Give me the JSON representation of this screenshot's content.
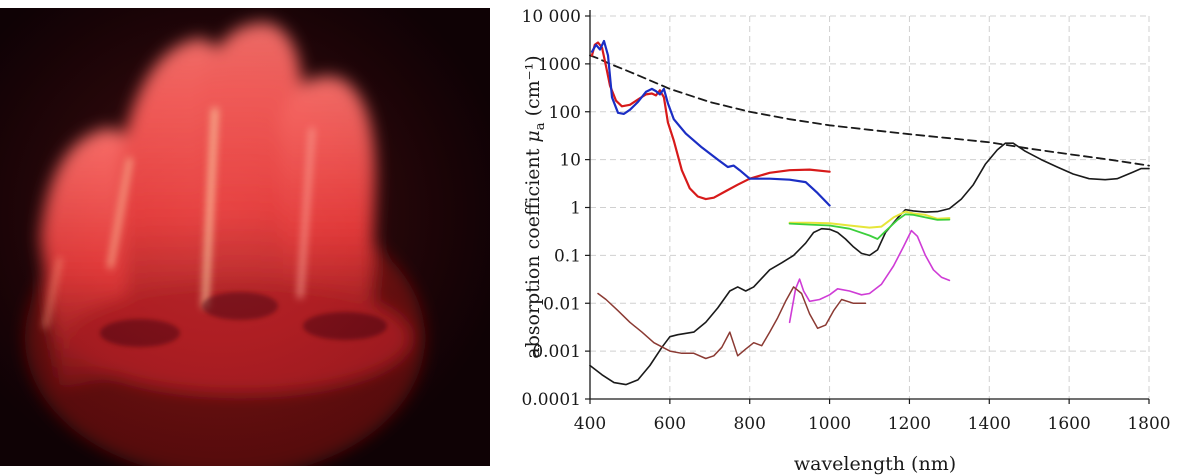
{
  "chart_data": {
    "type": "line",
    "xlabel": "wavelength (nm)",
    "ylabel_prefix": "absorption coefficient ",
    "ylabel_symbol": "μ",
    "ylabel_subscript": "a",
    "ylabel_suffix": " (cm⁻¹)",
    "xlim": [
      400,
      1800
    ],
    "ylim": [
      0.0001,
      10000
    ],
    "yscale": "log",
    "grid": true,
    "x_ticks": [
      400,
      600,
      800,
      1000,
      1200,
      1400,
      1600,
      1800
    ],
    "x_tick_labels": [
      "400",
      "600",
      "800",
      "1000",
      "1200",
      "1400",
      "1600",
      "1800"
    ],
    "y_ticks": [
      0.0001,
      0.001,
      0.01,
      0.1,
      1,
      10,
      100,
      1000,
      10000
    ],
    "y_tick_labels": [
      "0.0001",
      "0.001",
      "0.01",
      "0.1",
      "1",
      "10",
      "100",
      "1000",
      "10 000"
    ],
    "series": [
      {
        "color": "#1a1a1a",
        "dash": "8,5",
        "width": 1.8,
        "points": [
          [
            400,
            1500
          ],
          [
            420,
            1300
          ],
          [
            450,
            1000
          ],
          [
            500,
            680
          ],
          [
            600,
            300
          ],
          [
            700,
            160
          ],
          [
            800,
            100
          ],
          [
            900,
            70
          ],
          [
            1000,
            52
          ],
          [
            1100,
            42
          ],
          [
            1200,
            34
          ],
          [
            1300,
            28
          ],
          [
            1400,
            23
          ],
          [
            1500,
            17
          ],
          [
            1600,
            13
          ],
          [
            1700,
            10
          ],
          [
            1800,
            7.5
          ]
        ]
      },
      {
        "color": "#1a1a1a",
        "dash": "",
        "width": 1.6,
        "points": [
          [
            400,
            0.0005
          ],
          [
            430,
            0.00032
          ],
          [
            460,
            0.00022
          ],
          [
            490,
            0.0002
          ],
          [
            520,
            0.00025
          ],
          [
            550,
            0.0005
          ],
          [
            580,
            0.0012
          ],
          [
            600,
            0.002
          ],
          [
            620,
            0.0022
          ],
          [
            660,
            0.0025
          ],
          [
            690,
            0.004
          ],
          [
            720,
            0.008
          ],
          [
            750,
            0.018
          ],
          [
            770,
            0.022
          ],
          [
            790,
            0.018
          ],
          [
            810,
            0.022
          ],
          [
            850,
            0.05
          ],
          [
            880,
            0.07
          ],
          [
            910,
            0.1
          ],
          [
            940,
            0.18
          ],
          [
            960,
            0.3
          ],
          [
            980,
            0.36
          ],
          [
            1000,
            0.35
          ],
          [
            1020,
            0.3
          ],
          [
            1040,
            0.22
          ],
          [
            1060,
            0.15
          ],
          [
            1080,
            0.11
          ],
          [
            1100,
            0.1
          ],
          [
            1120,
            0.13
          ],
          [
            1140,
            0.3
          ],
          [
            1170,
            0.6
          ],
          [
            1190,
            0.9
          ],
          [
            1210,
            0.85
          ],
          [
            1240,
            0.8
          ],
          [
            1270,
            0.82
          ],
          [
            1300,
            0.95
          ],
          [
            1330,
            1.5
          ],
          [
            1360,
            3
          ],
          [
            1390,
            8
          ],
          [
            1420,
            16
          ],
          [
            1440,
            22
          ],
          [
            1460,
            22
          ],
          [
            1490,
            15
          ],
          [
            1530,
            10
          ],
          [
            1570,
            7
          ],
          [
            1610,
            5
          ],
          [
            1650,
            4
          ],
          [
            1690,
            3.8
          ],
          [
            1720,
            4
          ],
          [
            1760,
            5.5
          ],
          [
            1780,
            6.5
          ],
          [
            1800,
            6.5
          ]
        ]
      },
      {
        "color": "#d71a1a",
        "dash": "",
        "width": 2.2,
        "points": [
          [
            405,
            1500
          ],
          [
            412,
            2500
          ],
          [
            420,
            2800
          ],
          [
            430,
            2200
          ],
          [
            440,
            900
          ],
          [
            450,
            350
          ],
          [
            465,
            170
          ],
          [
            480,
            130
          ],
          [
            500,
            140
          ],
          [
            520,
            180
          ],
          [
            540,
            230
          ],
          [
            555,
            240
          ],
          [
            565,
            220
          ],
          [
            575,
            280
          ],
          [
            585,
            200
          ],
          [
            595,
            60
          ],
          [
            610,
            25
          ],
          [
            630,
            6
          ],
          [
            650,
            2.5
          ],
          [
            670,
            1.7
          ],
          [
            690,
            1.5
          ],
          [
            710,
            1.6
          ],
          [
            740,
            2.2
          ],
          [
            770,
            3
          ],
          [
            800,
            4
          ],
          [
            850,
            5.3
          ],
          [
            900,
            6
          ],
          [
            950,
            6.2
          ],
          [
            1000,
            5.6
          ]
        ]
      },
      {
        "color": "#1b2ec4",
        "dash": "",
        "width": 2.2,
        "points": [
          [
            405,
            1800
          ],
          [
            415,
            2500
          ],
          [
            425,
            2000
          ],
          [
            435,
            3000
          ],
          [
            445,
            1500
          ],
          [
            455,
            200
          ],
          [
            470,
            95
          ],
          [
            485,
            90
          ],
          [
            500,
            110
          ],
          [
            520,
            160
          ],
          [
            540,
            260
          ],
          [
            555,
            300
          ],
          [
            565,
            270
          ],
          [
            575,
            230
          ],
          [
            585,
            300
          ],
          [
            595,
            150
          ],
          [
            610,
            70
          ],
          [
            640,
            35
          ],
          [
            680,
            18
          ],
          [
            720,
            10
          ],
          [
            745,
            7
          ],
          [
            760,
            7.5
          ],
          [
            775,
            6
          ],
          [
            800,
            4
          ],
          [
            850,
            4
          ],
          [
            900,
            3.8
          ],
          [
            940,
            3.4
          ],
          [
            970,
            2
          ],
          [
            1000,
            1.1
          ]
        ]
      },
      {
        "color": "#e6e63a",
        "dash": "",
        "width": 2,
        "points": [
          [
            900,
            0.48
          ],
          [
            950,
            0.48
          ],
          [
            1000,
            0.47
          ],
          [
            1050,
            0.42
          ],
          [
            1100,
            0.38
          ],
          [
            1130,
            0.4
          ],
          [
            1160,
            0.62
          ],
          [
            1190,
            0.82
          ],
          [
            1210,
            0.75
          ],
          [
            1240,
            0.7
          ],
          [
            1270,
            0.58
          ],
          [
            1300,
            0.6
          ]
        ]
      },
      {
        "color": "#3ccf3c",
        "dash": "",
        "width": 1.8,
        "points": [
          [
            900,
            0.46
          ],
          [
            950,
            0.44
          ],
          [
            1000,
            0.42
          ],
          [
            1050,
            0.36
          ],
          [
            1100,
            0.26
          ],
          [
            1120,
            0.22
          ],
          [
            1140,
            0.32
          ],
          [
            1170,
            0.55
          ],
          [
            1190,
            0.72
          ],
          [
            1210,
            0.7
          ],
          [
            1240,
            0.62
          ],
          [
            1270,
            0.55
          ],
          [
            1300,
            0.56
          ]
        ]
      },
      {
        "color": "#cf3cd6",
        "dash": "",
        "width": 1.6,
        "points": [
          [
            900,
            0.004
          ],
          [
            915,
            0.02
          ],
          [
            925,
            0.032
          ],
          [
            935,
            0.018
          ],
          [
            950,
            0.011
          ],
          [
            975,
            0.012
          ],
          [
            1000,
            0.015
          ],
          [
            1020,
            0.02
          ],
          [
            1050,
            0.018
          ],
          [
            1080,
            0.015
          ],
          [
            1100,
            0.016
          ],
          [
            1130,
            0.025
          ],
          [
            1160,
            0.06
          ],
          [
            1185,
            0.15
          ],
          [
            1205,
            0.33
          ],
          [
            1220,
            0.25
          ],
          [
            1240,
            0.1
          ],
          [
            1260,
            0.05
          ],
          [
            1280,
            0.035
          ],
          [
            1300,
            0.03
          ]
        ]
      },
      {
        "color": "#8b3a33",
        "dash": "",
        "width": 1.5,
        "points": [
          [
            420,
            0.016
          ],
          [
            440,
            0.012
          ],
          [
            470,
            0.007
          ],
          [
            500,
            0.004
          ],
          [
            530,
            0.0025
          ],
          [
            560,
            0.0015
          ],
          [
            600,
            0.001
          ],
          [
            630,
            0.0009
          ],
          [
            660,
            0.0009
          ],
          [
            690,
            0.0007
          ],
          [
            710,
            0.0008
          ],
          [
            730,
            0.0012
          ],
          [
            750,
            0.0025
          ],
          [
            770,
            0.0008
          ],
          [
            790,
            0.0011
          ],
          [
            810,
            0.0015
          ],
          [
            830,
            0.0013
          ],
          [
            850,
            0.0025
          ],
          [
            870,
            0.005
          ],
          [
            890,
            0.011
          ],
          [
            910,
            0.022
          ],
          [
            930,
            0.016
          ],
          [
            950,
            0.006
          ],
          [
            970,
            0.003
          ],
          [
            990,
            0.0035
          ],
          [
            1010,
            0.007
          ],
          [
            1030,
            0.012
          ],
          [
            1060,
            0.01
          ],
          [
            1090,
            0.01
          ]
        ]
      }
    ]
  }
}
